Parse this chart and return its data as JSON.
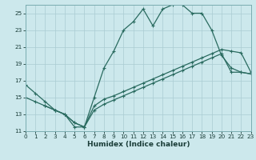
{
  "xlabel": "Humidex (Indice chaleur)",
  "bg_color": "#cce8ec",
  "grid_color": "#aaccd2",
  "line_color": "#2a6b60",
  "xlim": [
    0,
    23
  ],
  "ylim": [
    11,
    26
  ],
  "xticks": [
    0,
    1,
    2,
    3,
    4,
    5,
    6,
    7,
    8,
    9,
    10,
    11,
    12,
    13,
    14,
    15,
    16,
    17,
    18,
    19,
    20,
    21,
    22,
    23
  ],
  "yticks": [
    11,
    13,
    15,
    17,
    19,
    21,
    23,
    25
  ],
  "line1_x": [
    0,
    1,
    2,
    3,
    4,
    5,
    6,
    7,
    8,
    9,
    10,
    11,
    12,
    13,
    14,
    15,
    16,
    17,
    18,
    19,
    20,
    21,
    22,
    23
  ],
  "line1_y": [
    16.5,
    15.5,
    14.5,
    13.5,
    13.0,
    11.5,
    11.5,
    15.0,
    18.5,
    20.5,
    23.0,
    24.0,
    25.5,
    23.5,
    25.5,
    26.0,
    26.0,
    25.0,
    25.0,
    23.0,
    20.0,
    18.5,
    18.0,
    17.8
  ],
  "line2_x": [
    0,
    1,
    2,
    3,
    4,
    5,
    6,
    7,
    8,
    9,
    10,
    11,
    12,
    13,
    14,
    15,
    16,
    17,
    18,
    19,
    20,
    21,
    22,
    23
  ],
  "line2_y": [
    15.0,
    14.5,
    14.0,
    13.5,
    13.0,
    12.0,
    11.5,
    14.0,
    14.8,
    15.2,
    15.7,
    16.2,
    16.7,
    17.2,
    17.7,
    18.2,
    18.7,
    19.2,
    19.7,
    20.2,
    20.7,
    20.5,
    20.3,
    18.0
  ],
  "line3_x": [
    2,
    3,
    4,
    5,
    6,
    7,
    8,
    9,
    10,
    11,
    12,
    13,
    14,
    15,
    16,
    17,
    18,
    19,
    20,
    21,
    22,
    23
  ],
  "line3_y": [
    14.0,
    13.5,
    13.0,
    12.0,
    11.5,
    13.5,
    14.2,
    14.7,
    15.2,
    15.7,
    16.2,
    16.7,
    17.2,
    17.7,
    18.2,
    18.7,
    19.2,
    19.7,
    20.2,
    18.0,
    18.0,
    17.8
  ]
}
